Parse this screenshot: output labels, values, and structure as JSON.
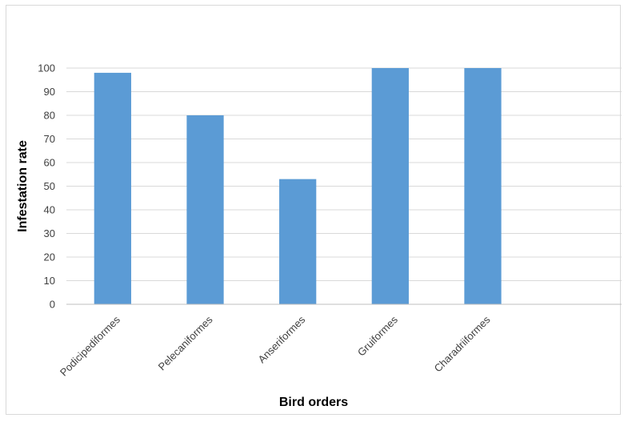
{
  "chart_data": {
    "type": "bar",
    "title": "",
    "xlabel": "Bird orders",
    "ylabel": "Infestation rate",
    "categories": [
      "Podicipediformes",
      "Pelecaniformes",
      "Anseriformes",
      "Gruiformes",
      "Charadriiformes"
    ],
    "values": [
      98,
      80,
      53,
      100,
      100
    ],
    "ylim": [
      0,
      100
    ],
    "yticks": [
      0,
      10,
      20,
      30,
      40,
      50,
      60,
      70,
      80,
      90,
      100
    ],
    "grid": true,
    "legend": "none",
    "bar_color": "#5b9bd5"
  }
}
